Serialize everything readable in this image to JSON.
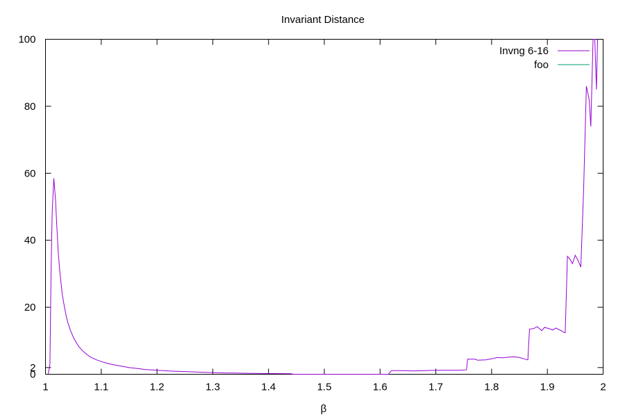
{
  "chart_data": {
    "type": "line",
    "title": "Invariant Distance",
    "xlabel": "β",
    "ylabel": "",
    "xlim": [
      1,
      2
    ],
    "ylim": [
      0,
      100
    ],
    "x_ticks": [
      1,
      1.1,
      1.2,
      1.3,
      1.4,
      1.5,
      1.6,
      1.7,
      1.8,
      1.9,
      2
    ],
    "x_tick_labels": [
      "1",
      "1.1",
      "1.2",
      "1.3",
      "1.4",
      "1.5",
      "1.6",
      "1.7",
      "1.8",
      "1.9",
      "2"
    ],
    "y_ticks": [
      0,
      2,
      20,
      40,
      60,
      80,
      100
    ],
    "y_tick_labels": [
      "0",
      "2",
      "20",
      "40",
      "60",
      "80",
      "100"
    ],
    "grid": false,
    "legend_position": "top-right",
    "series": [
      {
        "name": "Invng 6-16",
        "color": "#9400d3",
        "points": [
          [
            1.005,
            0
          ],
          [
            1.008,
            3
          ],
          [
            1.01,
            30
          ],
          [
            1.012,
            48
          ],
          [
            1.015,
            58.5
          ],
          [
            1.018,
            52
          ],
          [
            1.02,
            45
          ],
          [
            1.023,
            36
          ],
          [
            1.026,
            30
          ],
          [
            1.03,
            24
          ],
          [
            1.033,
            21
          ],
          [
            1.037,
            17.5
          ],
          [
            1.04,
            15.5
          ],
          [
            1.045,
            13
          ],
          [
            1.05,
            11
          ],
          [
            1.055,
            9.5
          ],
          [
            1.06,
            8.2
          ],
          [
            1.065,
            7.3
          ],
          [
            1.07,
            6.5
          ],
          [
            1.075,
            5.8
          ],
          [
            1.08,
            5.2
          ],
          [
            1.09,
            4.4
          ],
          [
            1.1,
            3.8
          ],
          [
            1.11,
            3.3
          ],
          [
            1.12,
            2.9
          ],
          [
            1.13,
            2.6
          ],
          [
            1.14,
            2.3
          ],
          [
            1.15,
            2.0
          ],
          [
            1.16,
            1.8
          ],
          [
            1.17,
            1.6
          ],
          [
            1.18,
            1.4
          ],
          [
            1.19,
            1.3
          ],
          [
            1.2,
            1.2
          ],
          [
            1.22,
            1.0
          ],
          [
            1.24,
            0.85
          ],
          [
            1.26,
            0.75
          ],
          [
            1.28,
            0.6
          ],
          [
            1.3,
            0.5
          ],
          [
            1.32,
            0.4
          ],
          [
            1.34,
            0.35
          ],
          [
            1.36,
            0.3
          ],
          [
            1.38,
            0.25
          ],
          [
            1.4,
            0.2
          ],
          [
            1.42,
            0.18
          ],
          [
            1.44,
            0.15
          ],
          [
            1.445,
            0.0
          ],
          [
            1.615,
            0.0
          ],
          [
            1.62,
            1.1
          ],
          [
            1.64,
            1.1
          ],
          [
            1.66,
            1.0
          ],
          [
            1.68,
            1.1
          ],
          [
            1.7,
            1.2
          ],
          [
            1.72,
            1.2
          ],
          [
            1.74,
            1.2
          ],
          [
            1.755,
            1.3
          ],
          [
            1.757,
            4.5
          ],
          [
            1.77,
            4.5
          ],
          [
            1.775,
            4.2
          ],
          [
            1.79,
            4.3
          ],
          [
            1.8,
            4.6
          ],
          [
            1.81,
            5.0
          ],
          [
            1.82,
            4.9
          ],
          [
            1.83,
            5.1
          ],
          [
            1.84,
            5.2
          ],
          [
            1.85,
            5.0
          ],
          [
            1.86,
            4.5
          ],
          [
            1.865,
            4.3
          ],
          [
            1.868,
            13.5
          ],
          [
            1.875,
            13.6
          ],
          [
            1.882,
            14.2
          ],
          [
            1.89,
            13.0
          ],
          [
            1.895,
            14.0
          ],
          [
            1.905,
            13.5
          ],
          [
            1.91,
            13.2
          ],
          [
            1.915,
            13.8
          ],
          [
            1.925,
            13.0
          ],
          [
            1.93,
            12.5
          ],
          [
            1.932,
            12.4
          ],
          [
            1.936,
            35.2
          ],
          [
            1.94,
            34.5
          ],
          [
            1.945,
            33.0
          ],
          [
            1.95,
            35.5
          ],
          [
            1.955,
            34.0
          ],
          [
            1.96,
            32.0
          ],
          [
            1.965,
            55
          ],
          [
            1.97,
            86
          ],
          [
            1.975,
            82
          ],
          [
            1.978,
            74
          ],
          [
            1.982,
            100
          ],
          [
            1.985,
            100
          ],
          [
            1.988,
            85
          ],
          [
            1.99,
            100
          ]
        ]
      },
      {
        "name": "foo",
        "color": "#009e73",
        "points": []
      }
    ]
  }
}
